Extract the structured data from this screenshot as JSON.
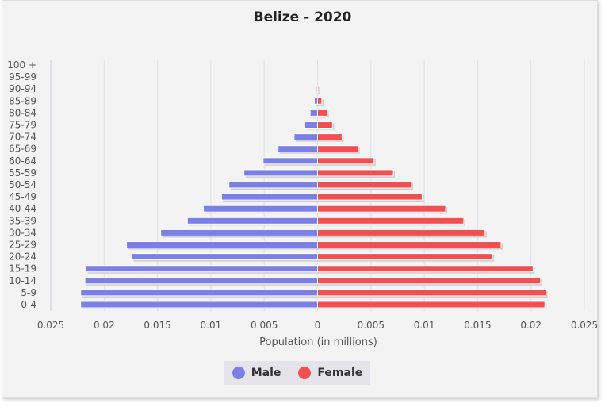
{
  "chart_data": {
    "type": "bar",
    "orientation": "horizontal",
    "title": "Belize - 2020",
    "xlabel": "Population (in millions)",
    "ylabel": "",
    "xlim": [
      -0.025,
      0.025
    ],
    "xticks": [
      "0.025",
      "0.02",
      "0.015",
      "0.01",
      "0.005",
      "0",
      "0.005",
      "0.01",
      "0.015",
      "0.02",
      "0.025"
    ],
    "grid": true,
    "legend_position": "bottom",
    "categories": [
      "0-4",
      "5-9",
      "10-14",
      "15-19",
      "20-24",
      "25-29",
      "30-34",
      "35-39",
      "40-44",
      "45-49",
      "50-54",
      "55-59",
      "60-64",
      "65-69",
      "70-74",
      "75-79",
      "80-84",
      "85-89",
      "90-94",
      "95-99",
      "100 +"
    ],
    "series": [
      {
        "name": "Male",
        "color": "#7b7fe8",
        "values": [
          0.0222,
          0.0222,
          0.0218,
          0.0217,
          0.0174,
          0.0179,
          0.0147,
          0.0122,
          0.0107,
          0.009,
          0.0083,
          0.0069,
          0.0051,
          0.0037,
          0.0022,
          0.0012,
          0.0007,
          0.0003,
          0.0001,
          0,
          0
        ]
      },
      {
        "name": "Female",
        "color": "#f05050",
        "values": [
          0.0213,
          0.0214,
          0.0209,
          0.0202,
          0.0164,
          0.0172,
          0.0157,
          0.0137,
          0.012,
          0.0098,
          0.0088,
          0.0071,
          0.0053,
          0.0038,
          0.0023,
          0.0014,
          0.0009,
          0.0004,
          0.0001,
          0,
          0
        ]
      }
    ]
  }
}
